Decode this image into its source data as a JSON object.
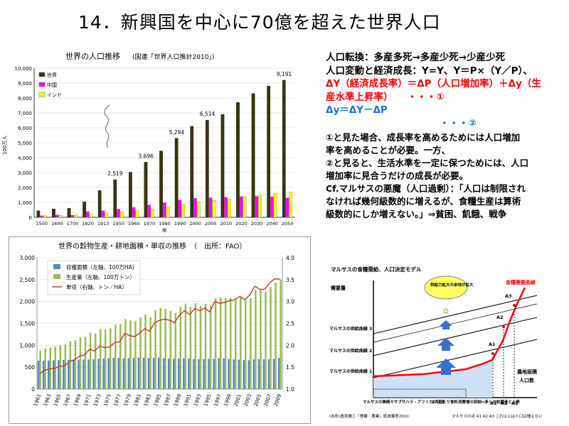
{
  "slide": {
    "title": "14．新興国を中心に70億を超えた世界人口"
  },
  "colors": {
    "world": "#3b3510",
    "china": "#ff00ff",
    "india": "#ffff00",
    "harvest_area": "#5b87c4",
    "production": "#9bbb59",
    "yield": "#c0392b",
    "red_text": "#ff0000",
    "blue_text": "#1f6fd1"
  },
  "text_block": {
    "line1": "人口転換：多産多死→多産少死→少産少死",
    "line2": "人口変動と経済成長：Y=Y、Y＝P×（Y／P）、",
    "line3": "ΔY（経済成長率）＝ΔP（人口増加率）＋Δy（生",
    "line4": "産水準上昇率）　　・・・①",
    "line5": "Δy＝ΔY－ΔP",
    "line6": "・・・②",
    "line7": "①と見た場合、成長率を高めるためには人口増加",
    "line8": "率を高めることが必要。一方、",
    "line9": "②と見ると、生活水準を一定に保つためには、人口",
    "line10": "増加率に見合うだけの成長が必要。",
    "line11": "Cf.マルサスの悪魔（人口過剰）：「人口は制限され",
    "line12": "なければ幾何級数的に増えるが、食糧生産は算術",
    "line13": "級数的にしか増えない。」⇒貧困、飢餓、戦争"
  },
  "chart_data": [
    {
      "type": "bar",
      "title": "世界の人口推移",
      "subtitle": "(国連「世界人口推計2010」)",
      "ylabel": "100万人",
      "xlabel": "年",
      "ylim": [
        0,
        10000
      ],
      "yticks": [
        "0",
        "1,000",
        "2,000",
        "3,000",
        "4,000",
        "5,000",
        "6,000",
        "7,000",
        "8,000",
        "9,000",
        "10,000"
      ],
      "legend_position": "top-left",
      "categories": [
        "1500",
        "1600",
        "1700",
        "1820",
        "1913",
        "1950",
        "1960",
        "1970",
        "1980",
        "1990",
        "2000",
        "2005",
        "2010",
        "2020",
        "2030",
        "2040",
        "2050"
      ],
      "series": [
        {
          "name": "世界",
          "values": [
            440,
            560,
            600,
            1040,
            1790,
            2519,
            3020,
            3696,
            4450,
            5294,
            6100,
            6514,
            6900,
            7700,
            8300,
            8800,
            9191
          ]
        },
        {
          "name": "中国",
          "values": [
            100,
            160,
            140,
            380,
            440,
            550,
            660,
            820,
            980,
            1150,
            1270,
            1310,
            1340,
            1390,
            1400,
            1380,
            1300
          ]
        },
        {
          "name": "インド",
          "values": [
            110,
            135,
            165,
            210,
            300,
            370,
            450,
            550,
            700,
            870,
            1050,
            1130,
            1220,
            1380,
            1520,
            1600,
            1700
          ]
        }
      ],
      "data_labels": [
        {
          "category": "1950",
          "text": "2,519"
        },
        {
          "category": "1970",
          "text": "3,696"
        },
        {
          "category": "1990",
          "text": "5,294"
        },
        {
          "category": "2005",
          "text": "6,514"
        },
        {
          "category": "2050",
          "text": "9,191"
        }
      ]
    },
    {
      "type": "bar",
      "title": "世界の穀物生産・耕地面積・単収の推移　（　出所：FAO）",
      "left_ylim": [
        0,
        3000
      ],
      "left_yticks": [
        "0",
        "500",
        "1,000",
        "1,500",
        "2,000",
        "2,500",
        "3,000"
      ],
      "right_ylim": [
        1.0,
        4.0
      ],
      "right_yticks": [
        "1.0",
        "1.5",
        "2.0",
        "2.5",
        "3.0",
        "3.5",
        "4.0"
      ],
      "legend_position": "top-left",
      "x_tick_labels": [
        "1961",
        "1963",
        "1965",
        "1967",
        "1969",
        "1971",
        "1973",
        "1975",
        "1977",
        "1979",
        "1981",
        "1983",
        "1985",
        "1987",
        "1989",
        "1991",
        "1993",
        "1995",
        "1997",
        "1999",
        "2001",
        "2003",
        "2005",
        "2007",
        "2009"
      ],
      "years_start": 1961,
      "years_end": 2009,
      "series": [
        {
          "name": "収穫面積（左軸、100万HA)",
          "kind": "bar",
          "axis": "left",
          "values": [
            648,
            651,
            652,
            658,
            660,
            668,
            670,
            672,
            674,
            673,
            675,
            678,
            693,
            698,
            708,
            712,
            710,
            705,
            706,
            710,
            718,
            714,
            708,
            713,
            720,
            705,
            692,
            690,
            695,
            700,
            695,
            690,
            682,
            685,
            688,
            690,
            706,
            698,
            688,
            678,
            672,
            668,
            660,
            678,
            688,
            680,
            680,
            690,
            712
          ]
        },
        {
          "name": "生産量（左軸、100万トン）",
          "kind": "bar",
          "axis": "left",
          "values": [
            877,
            930,
            950,
            970,
            1000,
            1020,
            1090,
            1120,
            1180,
            1200,
            1290,
            1270,
            1370,
            1360,
            1390,
            1470,
            1480,
            1600,
            1570,
            1560,
            1640,
            1700,
            1640,
            1800,
            1850,
            1830,
            1780,
            1740,
            1880,
            1950,
            1880,
            1960,
            1900,
            1950,
            1900,
            2070,
            2090,
            2080,
            2080,
            2060,
            2100,
            2030,
            2080,
            2270,
            2260,
            2230,
            2330,
            2430,
            2500
          ]
        },
        {
          "name": "単収（右軸、トン／HA）",
          "kind": "line",
          "axis": "right",
          "values": [
            1.35,
            1.43,
            1.46,
            1.47,
            1.52,
            1.53,
            1.63,
            1.67,
            1.75,
            1.78,
            1.91,
            1.87,
            1.98,
            1.95,
            1.96,
            2.06,
            2.08,
            2.27,
            2.22,
            2.2,
            2.28,
            2.38,
            2.32,
            2.52,
            2.57,
            2.6,
            2.57,
            2.52,
            2.7,
            2.79,
            2.7,
            2.84,
            2.79,
            2.85,
            2.76,
            3.0,
            2.96,
            2.98,
            3.02,
            3.04,
            3.12,
            3.04,
            3.15,
            3.35,
            3.28,
            3.28,
            3.43,
            3.52,
            3.51
          ]
        }
      ]
    }
  ],
  "malthus": {
    "title": "マルサスの食糧需給、人口決定モデル",
    "y_axis": "需要量",
    "x_axis_line1": "農地面積",
    "x_axis_line2": "人口数",
    "demand_curve": "食糧需要曲線",
    "supply1": "マルサスの供給曲線 1",
    "supply2": "マルサスの供給曲線 2",
    "supply3": "マルサスの供給曲線 3",
    "bubble": "供給力拡大の余地が拡大",
    "a1": "A1",
    "a2": "A2",
    "a3": "A3",
    "box_left": "マルサスの罠崎々サブサハラ・アフリカの状況",
    "box_mid": "1人当たり食料消費増の抑制⇒多くの飢餓者と上昇",
    "bottom_a1": "A1",
    "bottom_a2": "A2",
    "bottom_a3": "A3",
    "source": "(出所)逸見謙三『食糧・農業』筑波書房2010",
    "point_note": "マルサスの点 A1  A2  A3  これ以上は人口は増えない"
  }
}
